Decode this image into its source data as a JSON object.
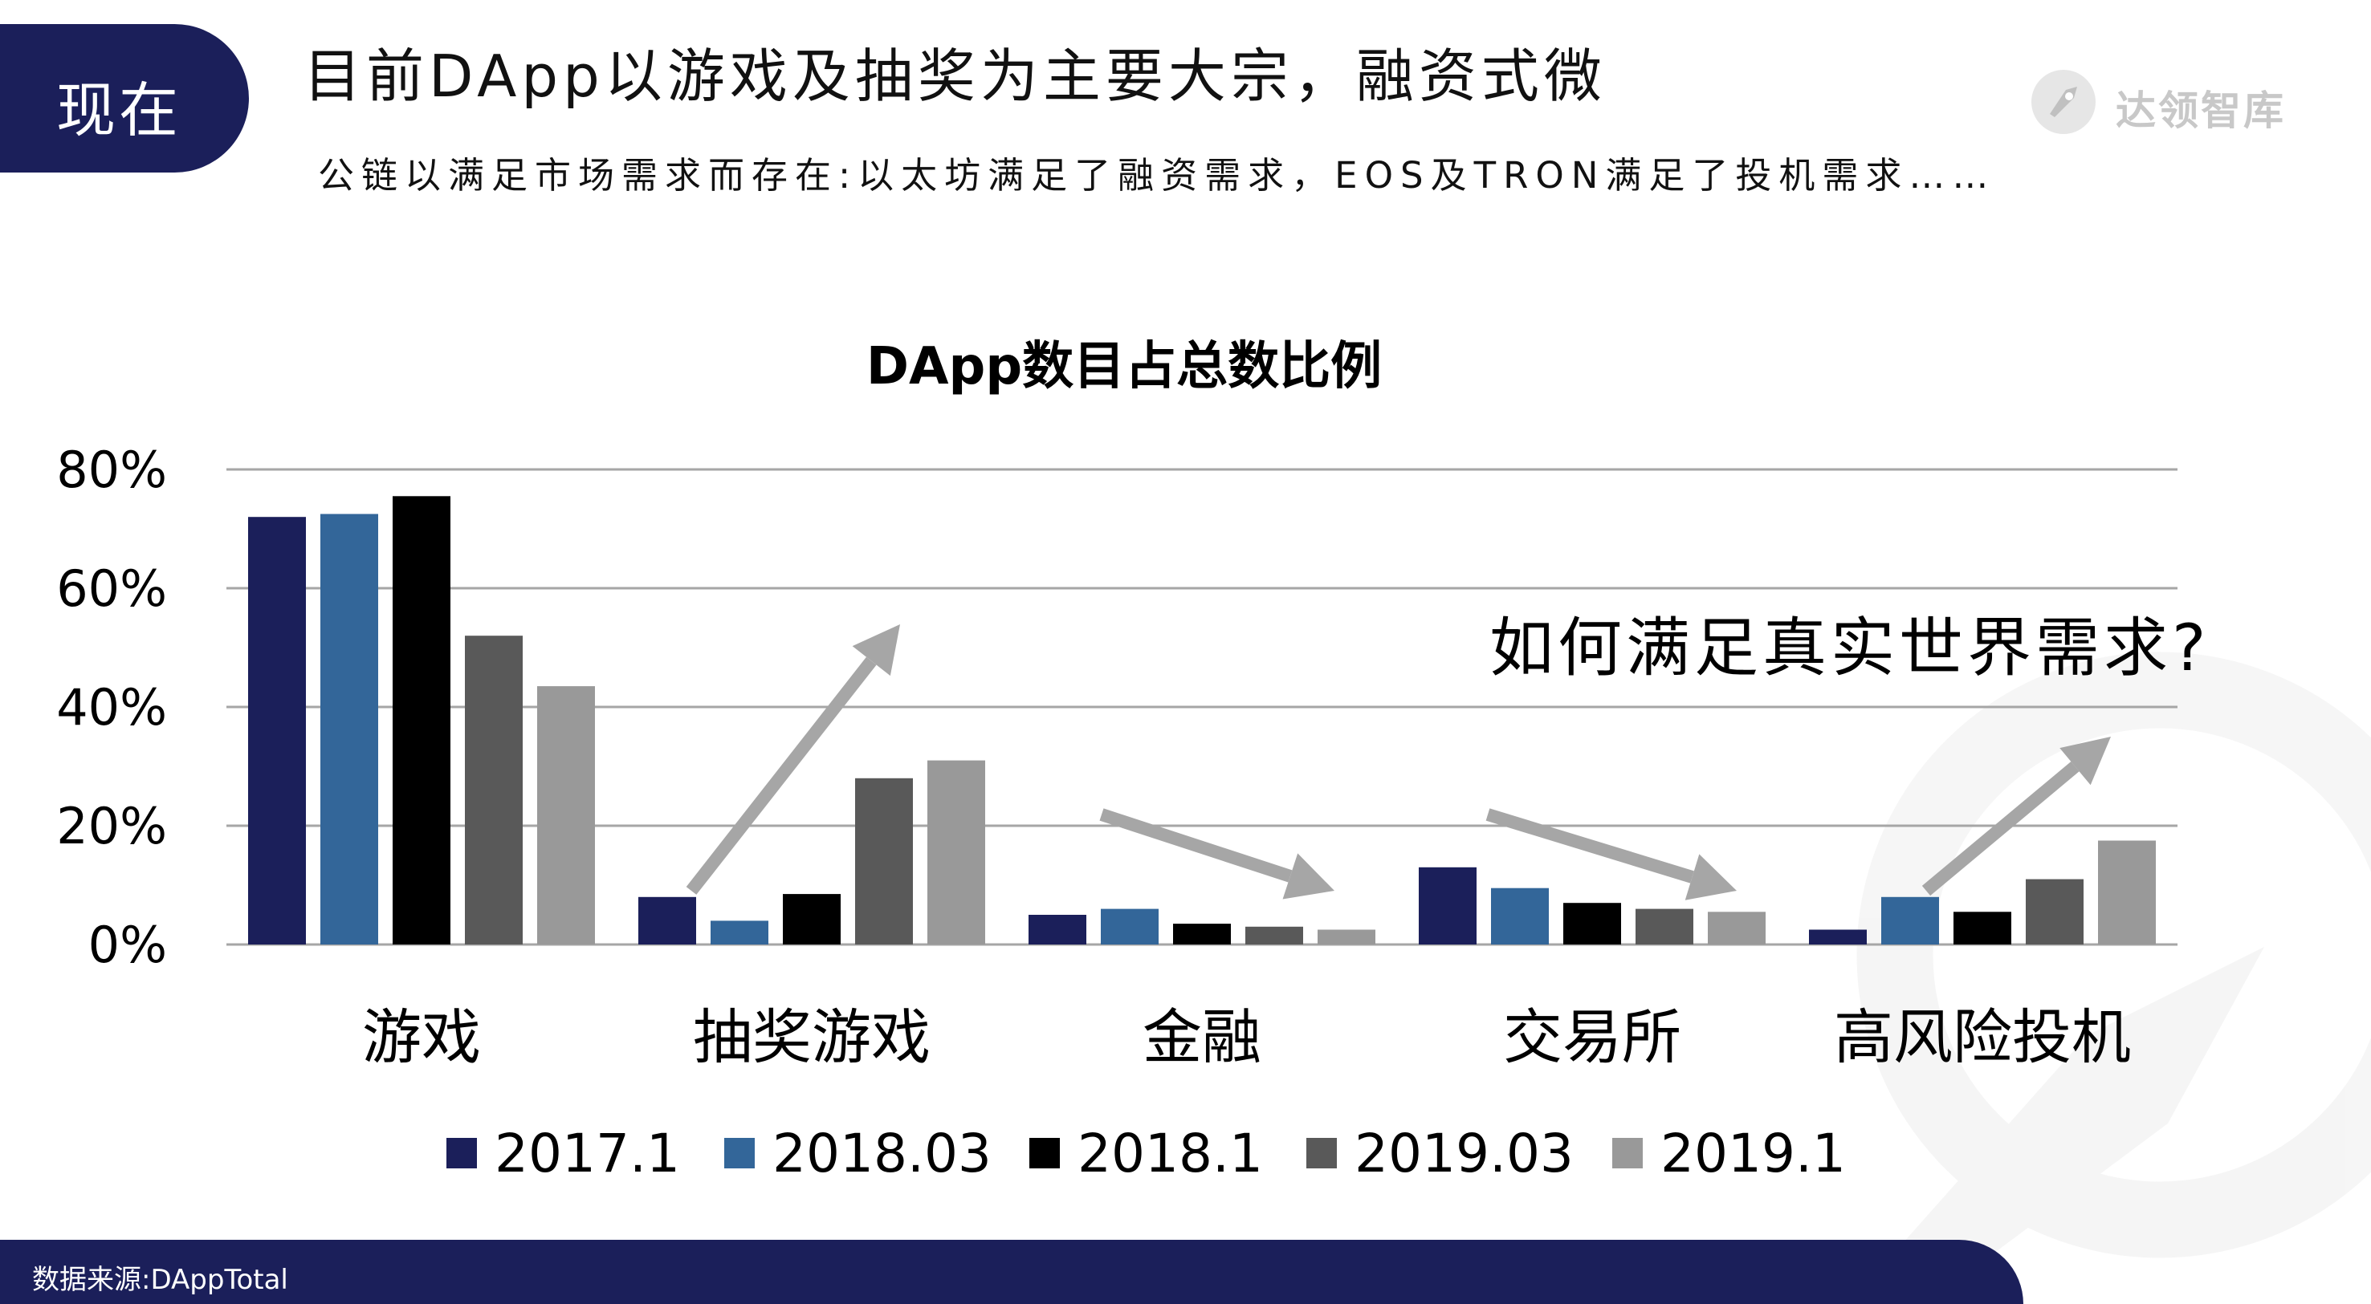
{
  "header": {
    "badge": "现在",
    "headline": "目前DApp以游戏及抽奖为主要大宗，融资式微",
    "subline": "公链以满足市场需求而存在:以太坊满足了融资需求，EOS及TRON满足了投机需求……",
    "logo_text": "达领智库"
  },
  "annotation": "如何满足真实世界需求?",
  "source": "数据来源:DAppTotal",
  "colors": {
    "navy": "#1b1f5a",
    "grid": "#a6a6a6",
    "arrow": "#a6a6a6"
  },
  "icons": [
    "rocket-logo-icon"
  ],
  "chart_data": {
    "type": "bar",
    "title": "DApp数目占总数比例",
    "categories": [
      "游戏",
      "抽奖游戏",
      "金融",
      "交易所",
      "高风险投机"
    ],
    "ylim": [
      0,
      80
    ],
    "yticks": [
      "0%",
      "20%",
      "40%",
      "60%",
      "80%"
    ],
    "grid": true,
    "legend_position": "bottom",
    "series": [
      {
        "name": "2017.1",
        "color": "#1b1f5a",
        "values": [
          72,
          8,
          5,
          13,
          2.5
        ]
      },
      {
        "name": "2018.03",
        "color": "#336699",
        "values": [
          72.5,
          4,
          6,
          9.5,
          8
        ]
      },
      {
        "name": "2018.1",
        "color": "#000000",
        "values": [
          75.5,
          8.5,
          3.5,
          7,
          5.5
        ]
      },
      {
        "name": "2019.03",
        "color": "#595959",
        "values": [
          52,
          28,
          3,
          6,
          11
        ]
      },
      {
        "name": "2019.1",
        "color": "#999999",
        "values": [
          43.5,
          31,
          2.5,
          5.5,
          17.5
        ]
      }
    ]
  }
}
